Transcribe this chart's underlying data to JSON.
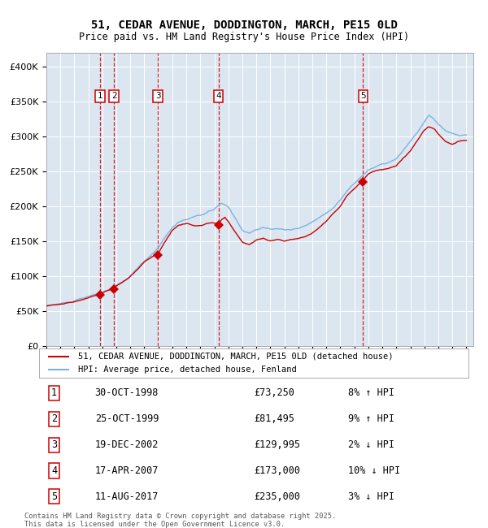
{
  "title": "51, CEDAR AVENUE, DODDINGTON, MARCH, PE15 0LD",
  "subtitle": "Price paid vs. HM Land Registry's House Price Index (HPI)",
  "fig_bg_color": "#ffffff",
  "plot_bg_color": "#dce6f1",
  "ylim": [
    0,
    420000
  ],
  "yticks": [
    0,
    50000,
    100000,
    150000,
    200000,
    250000,
    300000,
    350000,
    400000
  ],
  "ytick_labels": [
    "£0",
    "£50K",
    "£100K",
    "£150K",
    "£200K",
    "£250K",
    "£300K",
    "£350K",
    "£400K"
  ],
  "sale_prices": [
    73250,
    81495,
    129995,
    173000,
    235000
  ],
  "sale_labels": [
    "1",
    "2",
    "3",
    "4",
    "5"
  ],
  "sale_info": [
    {
      "num": "1",
      "date": "30-OCT-1998",
      "price": "£73,250",
      "hpi": "8% ↑ HPI"
    },
    {
      "num": "2",
      "date": "25-OCT-1999",
      "price": "£81,495",
      "hpi": "9% ↑ HPI"
    },
    {
      "num": "3",
      "date": "19-DEC-2002",
      "price": "£129,995",
      "hpi": "2% ↓ HPI"
    },
    {
      "num": "4",
      "date": "17-APR-2007",
      "price": "£173,000",
      "hpi": "10% ↓ HPI"
    },
    {
      "num": "5",
      "date": "11-AUG-2017",
      "price": "£235,000",
      "hpi": "3% ↓ HPI"
    }
  ],
  "legend_property": "51, CEDAR AVENUE, DODDINGTON, MARCH, PE15 0LD (detached house)",
  "legend_hpi": "HPI: Average price, detached house, Fenland",
  "footer": "Contains HM Land Registry data © Crown copyright and database right 2025.\nThis data is licensed under the Open Government Licence v3.0.",
  "property_line_color": "#cc0000",
  "hpi_line_color": "#7ab3e0",
  "marker_color": "#cc0000",
  "vline_color": "#cc0000",
  "grid_color": "#ffffff",
  "label_box_color": "#cc0000"
}
